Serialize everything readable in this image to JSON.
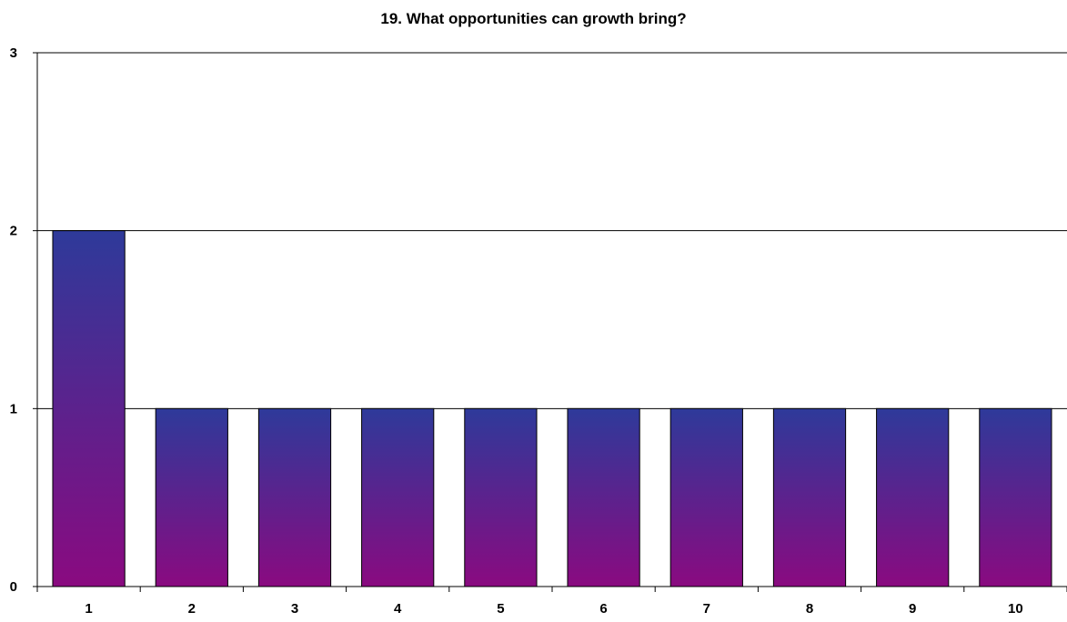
{
  "chart_data": {
    "type": "bar",
    "title": "19. What opportunities can growth bring?",
    "xlabel": "",
    "ylabel": "",
    "categories": [
      "1",
      "2",
      "3",
      "4",
      "5",
      "6",
      "7",
      "8",
      "9",
      "10"
    ],
    "values": [
      2,
      1,
      1,
      1,
      1,
      1,
      1,
      1,
      1,
      1
    ],
    "ylim": [
      0,
      3
    ],
    "yticks": [
      0,
      1,
      2,
      3
    ],
    "grid": true,
    "legend": "none",
    "colors": {
      "bar_top": "#2E3A9A",
      "bar_bottom": "#8A0A80",
      "gridline": "#000000"
    }
  }
}
